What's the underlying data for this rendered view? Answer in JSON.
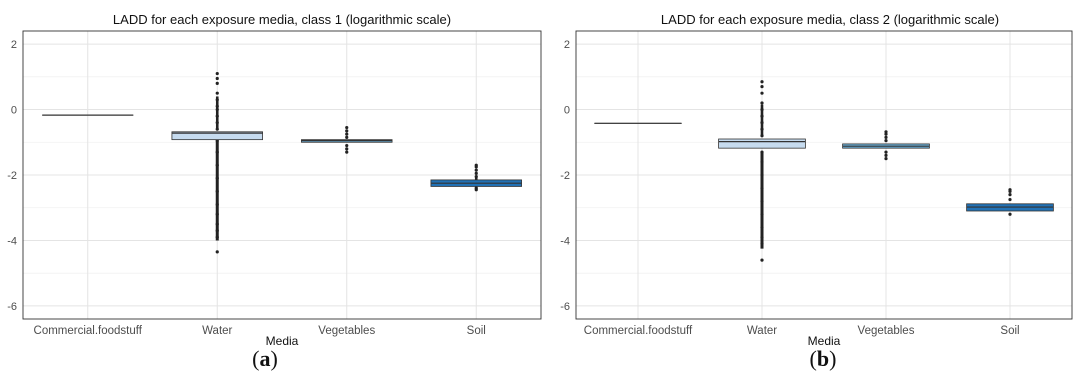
{
  "chart_data": [
    {
      "type": "box",
      "title": "LADD for each exposure media, class 1 (logarithmic scale)",
      "xlabel": "Media",
      "ylabel": "",
      "ylim": [
        -6.4,
        2.4
      ],
      "y_ticks": [
        2,
        0,
        -2,
        -4,
        -6
      ],
      "grid": true,
      "categories": [
        "Commercial.foodstuff",
        "Water",
        "Vegetables",
        "Soil"
      ],
      "boxes": [
        {
          "category": "Commercial.foodstuff",
          "q1": -0.17,
          "median": -0.17,
          "q3": -0.17,
          "whisker_low": -0.17,
          "whisker_high": -0.17,
          "fill": "#f2f2f2",
          "outliers_low": [],
          "outliers_high": []
        },
        {
          "category": "Water",
          "q1": -0.92,
          "median": -0.72,
          "q3": -0.68,
          "whisker_low": -0.92,
          "whisker_high": -0.68,
          "fill": "#c6dbef",
          "outliers_low": [
            -0.95,
            -1.3,
            -1.7,
            -2.1,
            -2.5,
            -2.9,
            -3.2,
            -3.5,
            -3.7,
            -3.9,
            -4.35
          ],
          "outliers_high": [
            -0.6,
            -0.4,
            -0.2,
            0.0,
            0.1,
            0.3,
            0.5,
            0.8,
            0.95,
            1.1
          ]
        },
        {
          "category": "Vegetables",
          "q1": -1.0,
          "median": -0.95,
          "q3": -0.92,
          "whisker_low": -1.0,
          "whisker_high": -0.92,
          "fill": "#6baed6",
          "outliers_low": [
            -1.1,
            -1.2,
            -1.3
          ],
          "outliers_high": [
            -0.85,
            -0.75,
            -0.65,
            -0.55
          ]
        },
        {
          "category": "Soil",
          "q1": -2.35,
          "median": -2.25,
          "q3": -2.15,
          "whisker_low": -2.35,
          "whisker_high": -2.15,
          "fill": "#2171b5",
          "outliers_low": [
            -2.4,
            -2.45
          ],
          "outliers_high": [
            -2.05,
            -1.95,
            -1.85,
            -1.75,
            -1.7
          ]
        }
      ]
    },
    {
      "type": "box",
      "title": "LADD for each exposure media, class 2 (logarithmic scale)",
      "xlabel": "Media",
      "ylabel": "",
      "ylim": [
        -6.4,
        2.4
      ],
      "y_ticks": [
        2,
        0,
        -2,
        -4,
        -6
      ],
      "grid": true,
      "categories": [
        "Commercial.foodstuff",
        "Water",
        "Vegetables",
        "Soil"
      ],
      "boxes": [
        {
          "category": "Commercial.foodstuff",
          "q1": -0.42,
          "median": -0.42,
          "q3": -0.42,
          "whisker_low": -0.42,
          "whisker_high": -0.42,
          "fill": "#f2f2f2",
          "outliers_low": [],
          "outliers_high": []
        },
        {
          "category": "Water",
          "q1": -1.18,
          "median": -0.98,
          "q3": -0.9,
          "whisker_low": -1.18,
          "whisker_high": -0.9,
          "fill": "#c6dbef",
          "outliers_low": [
            -1.3,
            -1.6,
            -2.0,
            -2.4,
            -2.8,
            -3.2,
            -3.6,
            -3.9,
            -4.1,
            -4.6
          ],
          "outliers_high": [
            -0.8,
            -0.6,
            -0.4,
            -0.2,
            0.0,
            0.2,
            0.5,
            0.7,
            0.85
          ]
        },
        {
          "category": "Vegetables",
          "q1": -1.18,
          "median": -1.12,
          "q3": -1.05,
          "whisker_low": -1.18,
          "whisker_high": -1.05,
          "fill": "#6baed6",
          "outliers_low": [
            -1.3,
            -1.4,
            -1.5
          ],
          "outliers_high": [
            -0.95,
            -0.85,
            -0.75,
            -0.68
          ]
        },
        {
          "category": "Soil",
          "q1": -3.1,
          "median": -2.98,
          "q3": -2.88,
          "whisker_low": -3.1,
          "whisker_high": -2.88,
          "fill": "#2171b5",
          "outliers_low": [
            -3.2
          ],
          "outliers_high": [
            -2.75,
            -2.6,
            -2.5,
            -2.45
          ]
        }
      ]
    }
  ],
  "captions": {
    "panel_a": {
      "open": "(",
      "letter": "a",
      "close": ")"
    },
    "panel_b": {
      "open": "(",
      "letter": "b",
      "close": ")"
    }
  }
}
